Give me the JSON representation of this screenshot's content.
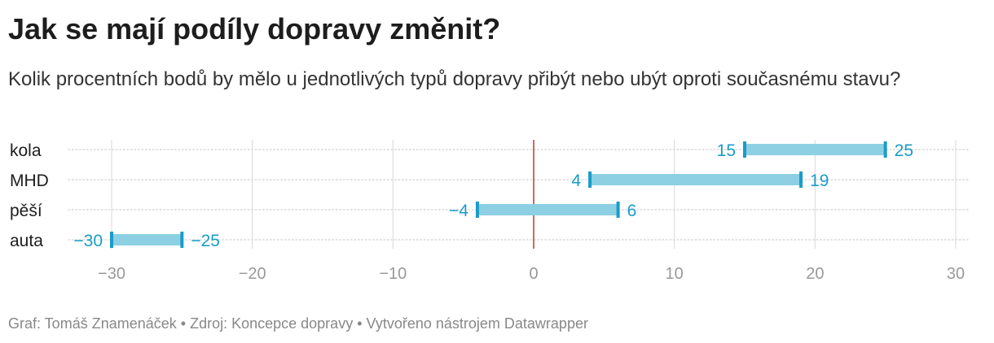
{
  "header": {
    "title": "Jak se mají podíly dopravy změnit?",
    "subtitle": "Kolik procentních bodů by mělo u jednotlivých typů dopravy přibýt nebo ubýt oproti současnému stavu?"
  },
  "footer": {
    "graf": "Graf: Tomáš Znamenáček",
    "zdroj": "Zdroj: Koncepce dopravy",
    "tool": "Vytvořeno nástrojem Datawrapper",
    "separator": " • "
  },
  "chart_data": {
    "type": "range",
    "title": "Jak se mají podíly dopravy změnit?",
    "subtitle": "Kolik procentních bodů by mělo u jednotlivých typů dopravy přibýt nebo ubýt oproti současnému stavu?",
    "xlim": [
      -30,
      30
    ],
    "xticks": [
      -30,
      -20,
      -10,
      0,
      10,
      20,
      30
    ],
    "grid": true,
    "categories": [
      "kola",
      "MHD",
      "pěší",
      "auta"
    ],
    "ranges": [
      {
        "category": "kola",
        "from": 15,
        "to": 25,
        "from_label": "15",
        "to_label": "25"
      },
      {
        "category": "MHD",
        "from": 4,
        "to": 19,
        "from_label": "4",
        "to_label": "19"
      },
      {
        "category": "pěší",
        "from": -4,
        "to": 6,
        "from_label": "−4",
        "to_label": "6"
      },
      {
        "category": "auta",
        "from": -30,
        "to": -25,
        "from_label": "−30",
        "to_label": "−25"
      }
    ],
    "colors": {
      "bar": "#8dd0e3",
      "endpoint": "#1a9cc9",
      "label": "#1a9cc9",
      "zero_line": "#c0392b",
      "grid": "#d8d8d8",
      "tick_label": "#999999"
    }
  }
}
